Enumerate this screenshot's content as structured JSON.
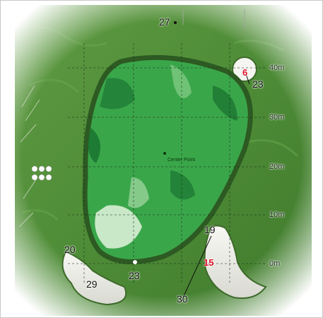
{
  "green": {
    "center_label": "Center Point",
    "distance_markers": [
      "40m",
      "30m",
      "20m",
      "10m",
      "0m"
    ],
    "points": [
      {
        "label": "27"
      },
      {
        "label": "6"
      },
      {
        "label": "23"
      },
      {
        "label": "19"
      },
      {
        "label": "15"
      },
      {
        "label": "20"
      },
      {
        "label": "23"
      },
      {
        "label": "29"
      },
      {
        "label": "30"
      }
    ]
  }
}
